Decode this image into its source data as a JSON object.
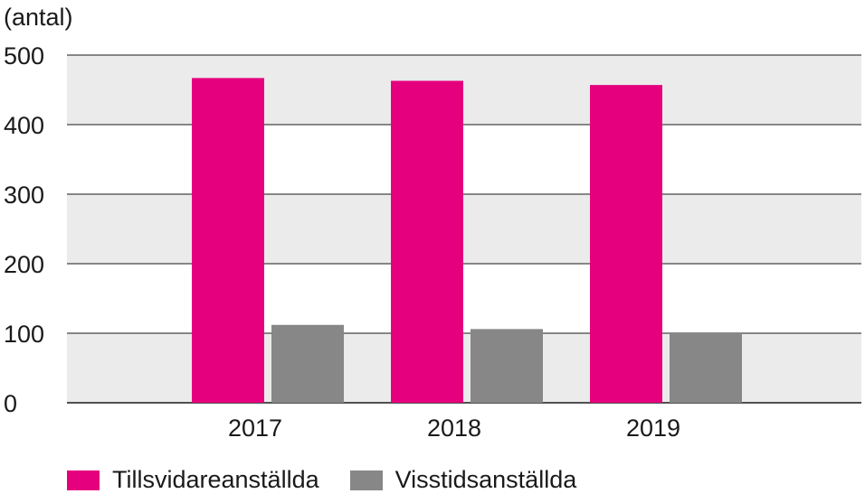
{
  "chart_data": {
    "type": "bar",
    "unit_label": "(antal)",
    "categories": [
      "2017",
      "2018",
      "2019"
    ],
    "series": [
      {
        "name": "Tillsvidareanställda",
        "color": "#e5007e",
        "values": [
          467,
          463,
          457
        ]
      },
      {
        "name": "Visstidsanställda",
        "color": "#878787",
        "values": [
          112,
          106,
          100
        ]
      }
    ],
    "yticks": [
      0,
      100,
      200,
      300,
      400,
      500
    ],
    "ylim": [
      0,
      500
    ],
    "grid": true,
    "background_bands": [
      "#ebebeb",
      "#ffffff"
    ],
    "legend": "bottom-left"
  }
}
